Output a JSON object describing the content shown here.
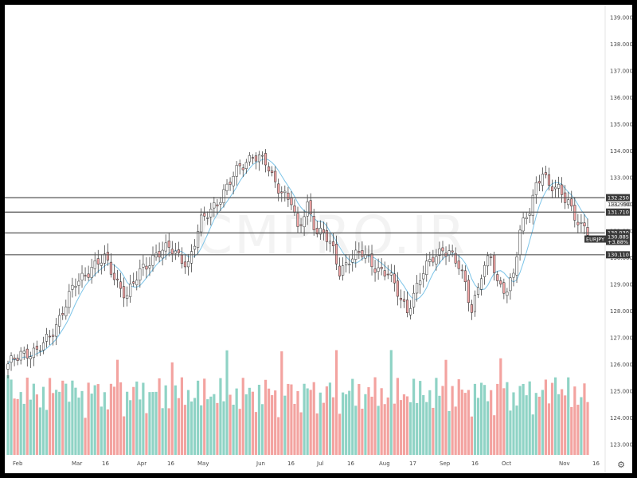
{
  "watermark": "CMPRO.IR",
  "symbol_tag": "EURJPY",
  "change_text": "+3.88%",
  "colors": {
    "up_candle": "#ffffff",
    "down_candle": "#f4a7a7",
    "candle_outline": "#2b2b2b",
    "ma_line": "#7cc4e8",
    "vol_up": "#8fd3c5",
    "vol_down": "#f3a3a0",
    "hline": "#555555",
    "tag_bg": "#3a3a3a"
  },
  "chart_data": {
    "type": "candlestick",
    "title": "",
    "price_axis": {
      "min": 123.0,
      "max": 139.0,
      "ticks": [
        "123.000",
        "124.000",
        "125.000",
        "126.000",
        "127.000",
        "128.000",
        "129.000",
        "130.000",
        "131.000",
        "132.000",
        "133.000",
        "134.000",
        "135.000",
        "136.000",
        "137.000",
        "138.000",
        "139.000"
      ]
    },
    "date_ticks": [
      "Feb",
      "Mar",
      "16",
      "Apr",
      "16",
      "May",
      "Jun",
      "16",
      "Jul",
      "16",
      "Aug",
      "17",
      "Sep",
      "16",
      "Oct",
      "Nov",
      "16"
    ],
    "horizontal_levels": [
      {
        "label": "132.250",
        "value": 132.25
      },
      {
        "label": "131.710",
        "value": 131.71
      },
      {
        "label": "130.930",
        "value": 130.93
      },
      {
        "label": "130.110",
        "value": 130.11
      }
    ],
    "hidden_level_label": "131.990",
    "last_price": "130.885",
    "close_path": [
      [
        0,
        125.9
      ],
      [
        4,
        126.5
      ],
      [
        9,
        126.4
      ],
      [
        13,
        127.1
      ],
      [
        17,
        128.0
      ],
      [
        21,
        129.0
      ],
      [
        26,
        129.7
      ],
      [
        30,
        129.9
      ],
      [
        34,
        129.1
      ],
      [
        37,
        128.6
      ],
      [
        42,
        129.6
      ],
      [
        46,
        130.2
      ],
      [
        50,
        130.3
      ],
      [
        54,
        130.0
      ],
      [
        56,
        129.8
      ],
      [
        60,
        131.3
      ],
      [
        64,
        132.0
      ],
      [
        68,
        132.6
      ],
      [
        72,
        133.4
      ],
      [
        76,
        133.9
      ],
      [
        80,
        133.5
      ],
      [
        82,
        133.0
      ],
      [
        84,
        132.7
      ],
      [
        88,
        132.1
      ],
      [
        90,
        130.9
      ],
      [
        93,
        132.0
      ],
      [
        96,
        131.0
      ],
      [
        98,
        130.9
      ],
      [
        101,
        130.2
      ],
      [
        103,
        129.5
      ],
      [
        106,
        130.0
      ],
      [
        110,
        130.1
      ],
      [
        114,
        129.7
      ],
      [
        118,
        129.4
      ],
      [
        122,
        128.4
      ],
      [
        124,
        128.1
      ],
      [
        128,
        129.2
      ],
      [
        132,
        130.0
      ],
      [
        135,
        130.4
      ],
      [
        137,
        130.2
      ],
      [
        140,
        129.6
      ],
      [
        142,
        129.0
      ],
      [
        144,
        128.1
      ],
      [
        147,
        129.4
      ],
      [
        150,
        130.0
      ],
      [
        152,
        129.0
      ],
      [
        155,
        128.9
      ],
      [
        157,
        129.4
      ],
      [
        159,
        130.9
      ],
      [
        162,
        131.8
      ],
      [
        164,
        132.8
      ],
      [
        166,
        133.3
      ],
      [
        168,
        132.6
      ],
      [
        171,
        132.5
      ],
      [
        174,
        132.2
      ],
      [
        176,
        131.6
      ],
      [
        178,
        131.1
      ],
      [
        180,
        130.9
      ]
    ],
    "series": [
      {
        "name": "EURJPY",
        "kind": "candles"
      }
    ]
  }
}
